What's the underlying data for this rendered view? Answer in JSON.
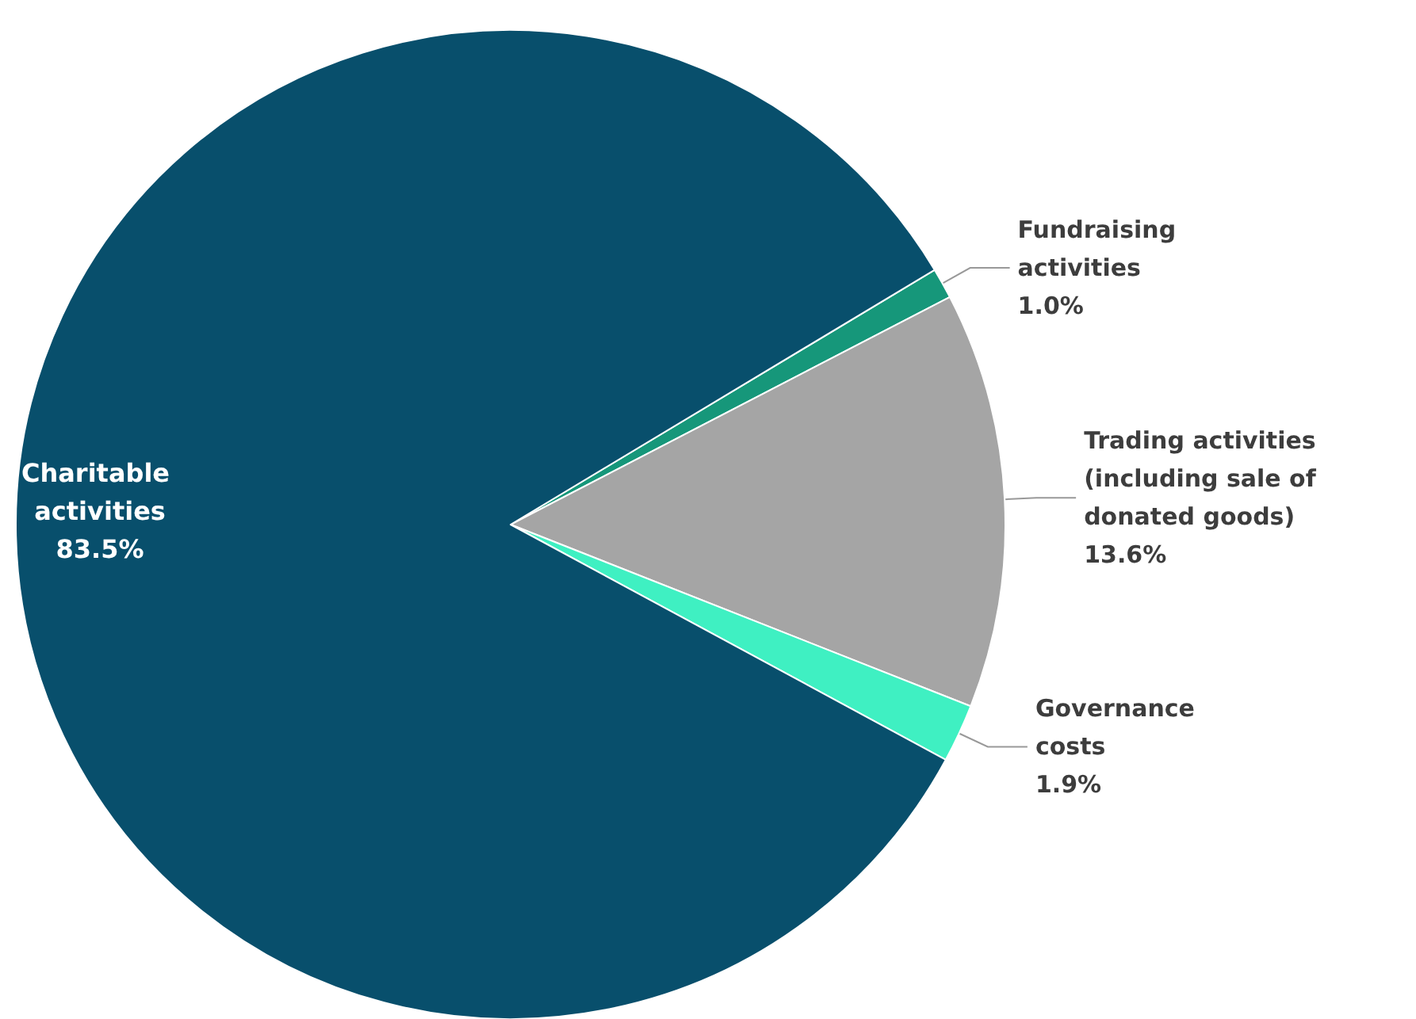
{
  "chart_data": {
    "type": "pie",
    "categories": [
      "Fundraising activities",
      "Trading activities (including sale of donated goods)",
      "Governance costs",
      "Charitable activities"
    ],
    "values": [
      1.0,
      13.6,
      1.9,
      83.5
    ],
    "value_labels": [
      "1.0%",
      "13.6%",
      "1.9%",
      "83.5%"
    ],
    "colors": [
      "#16977a",
      "#a5a5a5",
      "#3ff0c2",
      "#084f6c"
    ]
  }
}
